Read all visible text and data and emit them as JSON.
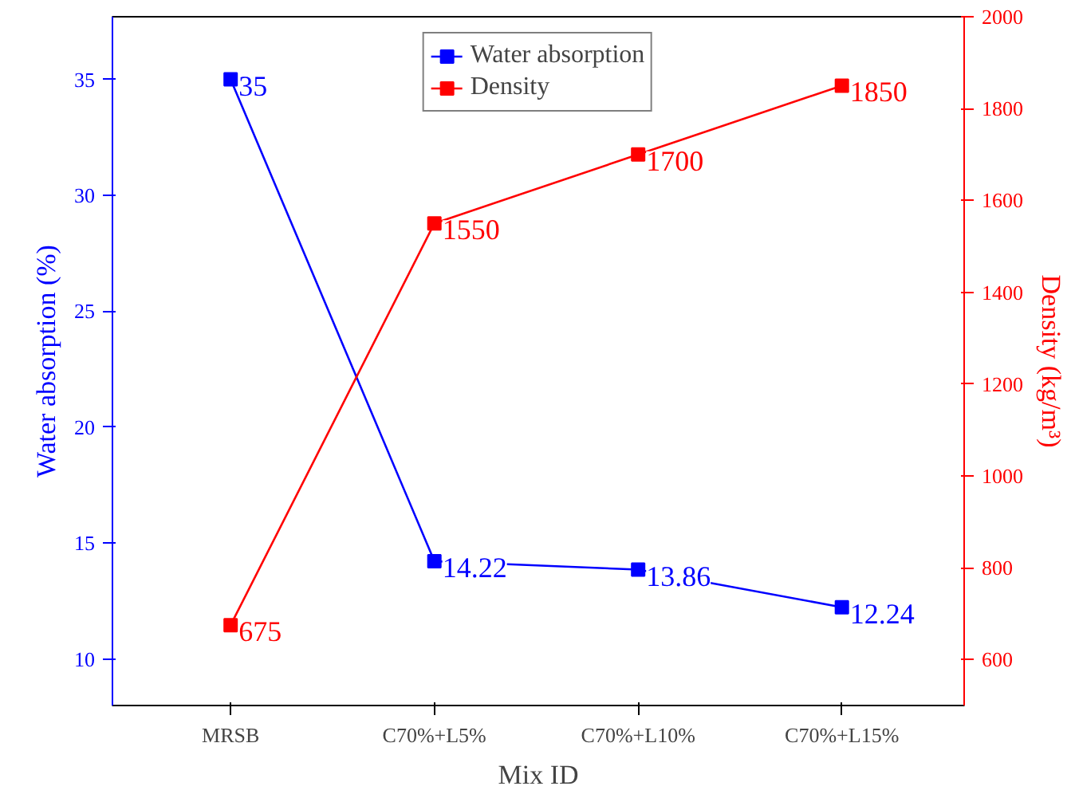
{
  "chart_data": {
    "type": "line",
    "xlabel": "Mix ID",
    "ylabel": "Water absorption (%)",
    "y2label": "Density (kg/m³)",
    "categories": [
      "MRSB",
      "C70%+L5%",
      "C70%+L10%",
      "C70%+L15%"
    ],
    "series": [
      {
        "name": "Water absorption",
        "color": "#0000ff",
        "values": [
          35,
          14.22,
          13.86,
          12.24
        ]
      },
      {
        "name": "Density",
        "color": "#ff0000",
        "values": [
          675,
          1550,
          1700,
          1850
        ],
        "axis": "y2"
      }
    ],
    "ylim": [
      8,
      37.7
    ],
    "yticks": [
      10,
      15,
      20,
      25,
      30,
      35
    ],
    "y2lim": [
      500,
      2000
    ],
    "y2ticks": [
      600,
      800,
      1000,
      1200,
      1400,
      1600,
      1800,
      2000
    ],
    "data_labels": true,
    "marker": "square",
    "line_style": "solid",
    "legend": "top",
    "grid": false
  }
}
